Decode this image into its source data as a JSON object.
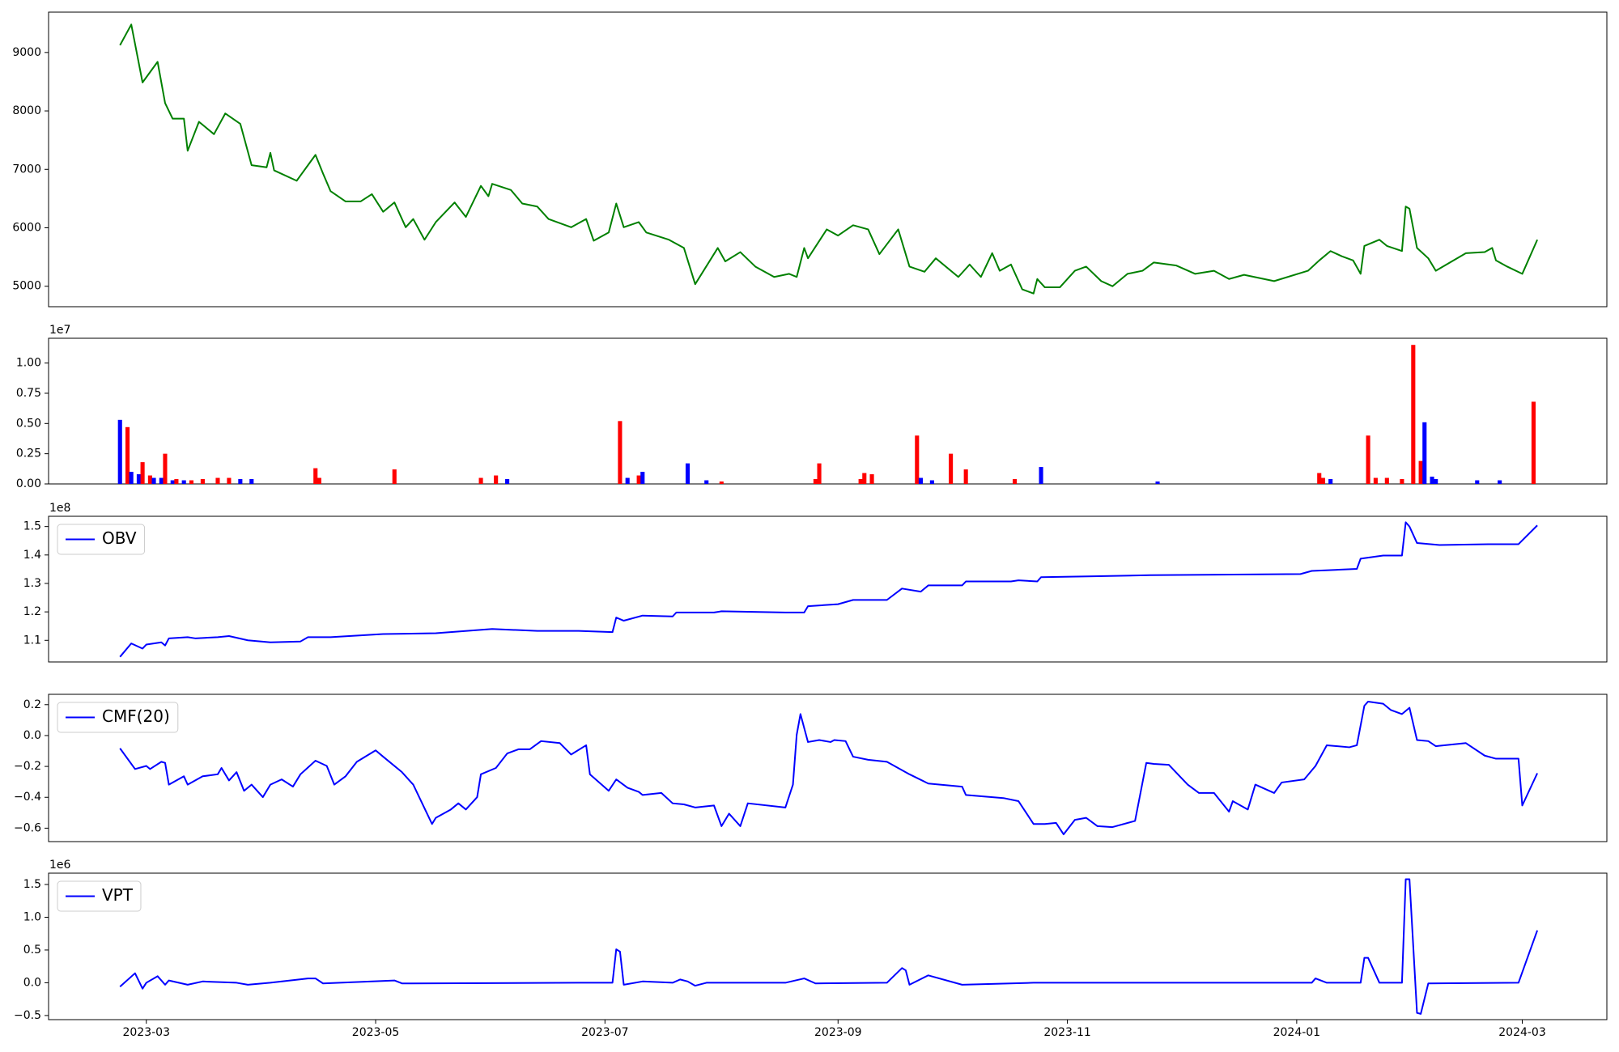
{
  "chart_data": [
    {
      "type": "line",
      "color": "#008000",
      "x": [
        52,
        55,
        58,
        62,
        64,
        66,
        69,
        70,
        73,
        77,
        80,
        84,
        87,
        91,
        92,
        93,
        99,
        100,
        104,
        106,
        108,
        112,
        116,
        119,
        122,
        125,
        128,
        130,
        133,
        136,
        141,
        144,
        148,
        150,
        151,
        156,
        159,
        163,
        166,
        172,
        176,
        178,
        182,
        184,
        186,
        190,
        192,
        198,
        202,
        205,
        211,
        213,
        217,
        221,
        226,
        230,
        232,
        234,
        235,
        240,
        243,
        247,
        251,
        254,
        259,
        262,
        266,
        269,
        275,
        278,
        281,
        284,
        286,
        289,
        292,
        295,
        296,
        298,
        302,
        306,
        309,
        313,
        316,
        320,
        324,
        327,
        333,
        338,
        343,
        347,
        351,
        359,
        368,
        371,
        374,
        377,
        380,
        382,
        383,
        387,
        389,
        393,
        394,
        395,
        397,
        400,
        402,
        410,
        415,
        417,
        418,
        421,
        425,
        429
      ],
      "values": [
        9124,
        9478,
        8487,
        8840,
        8133,
        7867,
        7867,
        7318,
        7814,
        7602,
        7956,
        7779,
        7071,
        7035,
        7283,
        6982,
        6805,
        6894,
        7248,
        6929,
        6628,
        6451,
        6451,
        6575,
        6274,
        6434,
        6009,
        6150,
        5796,
        6097,
        6434,
        6186,
        6717,
        6540,
        6752,
        6646,
        6416,
        6363,
        6150,
        6009,
        6150,
        5779,
        5920,
        6416,
        6009,
        6097,
        5920,
        5796,
        5655,
        5035,
        5655,
        5425,
        5584,
        5336,
        5159,
        5212,
        5159,
        5655,
        5478,
        5973,
        5867,
        6044,
        5973,
        5549,
        5973,
        5336,
        5248,
        5478,
        5159,
        5372,
        5159,
        5566,
        5265,
        5372,
        4947,
        4876,
        5124,
        4982,
        4982,
        5265,
        5336,
        5088,
        5000,
        5212,
        5265,
        5407,
        5354,
        5212,
        5265,
        5124,
        5195,
        5088,
        5265,
        5442,
        5602,
        5513,
        5442,
        5212,
        5690,
        5796,
        5690,
        5602,
        6363,
        6327,
        5655,
        5478,
        5265,
        5566,
        5584,
        5655,
        5442,
        5336,
        5212,
        5796
      ],
      "xlim": [
        33,
        447.5
      ],
      "ylim": [
        4650,
        9690
      ],
      "yticks": [
        5000,
        6000,
        7000,
        8000,
        9000
      ]
    },
    {
      "type": "bar",
      "offset_label": "1e7",
      "x": [
        52,
        54,
        55,
        57,
        58,
        60,
        61,
        63,
        64,
        66,
        67,
        69,
        71,
        74,
        78,
        81,
        84,
        87,
        104,
        105,
        125,
        148,
        152,
        155,
        185,
        187,
        190,
        191,
        203,
        208,
        212,
        237,
        238,
        249,
        250,
        252,
        264,
        265,
        268,
        273,
        277,
        290,
        297,
        328,
        371,
        372,
        374,
        384,
        386,
        389,
        393,
        396,
        398,
        399,
        401,
        402,
        413,
        419,
        428
      ],
      "values": [
        0.53,
        0.47,
        0.1,
        0.08,
        0.18,
        0.07,
        0.05,
        0.05,
        0.25,
        0.03,
        0.04,
        0.03,
        0.03,
        0.04,
        0.05,
        0.05,
        0.04,
        0.04,
        0.13,
        0.05,
        0.12,
        0.05,
        0.07,
        0.04,
        0.52,
        0.05,
        0.07,
        0.1,
        0.17,
        0.03,
        0.02,
        0.04,
        0.17,
        0.04,
        0.09,
        0.08,
        0.4,
        0.05,
        0.03,
        0.25,
        0.12,
        0.04,
        0.14,
        0.02,
        0.09,
        0.05,
        0.04,
        0.4,
        0.05,
        0.05,
        0.04,
        1.15,
        0.19,
        0.51,
        0.06,
        0.04,
        0.03,
        0.03,
        0.68
      ],
      "colors": [
        "#0000ff",
        "#ff0000",
        "#0000ff",
        "#0000ff",
        "#ff0000",
        "#ff0000",
        "#0000ff",
        "#0000ff",
        "#ff0000",
        "#0000ff",
        "#ff0000",
        "#0000ff",
        "#ff0000",
        "#ff0000",
        "#ff0000",
        "#ff0000",
        "#0000ff",
        "#0000ff",
        "#ff0000",
        "#ff0000",
        "#ff0000",
        "#ff0000",
        "#ff0000",
        "#0000ff",
        "#ff0000",
        "#0000ff",
        "#ff0000",
        "#0000ff",
        "#0000ff",
        "#0000ff",
        "#ff0000",
        "#ff0000",
        "#ff0000",
        "#ff0000",
        "#ff0000",
        "#ff0000",
        "#ff0000",
        "#0000ff",
        "#0000ff",
        "#ff0000",
        "#ff0000",
        "#ff0000",
        "#0000ff",
        "#0000ff",
        "#ff0000",
        "#ff0000",
        "#0000ff",
        "#ff0000",
        "#ff0000",
        "#ff0000",
        "#ff0000",
        "#ff0000",
        "#ff0000",
        "#0000ff",
        "#0000ff",
        "#0000ff",
        "#0000ff",
        "#0000ff",
        "#ff0000"
      ],
      "xlim": [
        33,
        447.5
      ],
      "ylim": [
        0,
        1.205
      ],
      "yticks": [
        {
          "value": 0,
          "label": "0.00"
        },
        0.25,
        {
          "value": 0.5,
          "label": "0.50"
        },
        0.75,
        {
          "value": 1,
          "label": "1.00"
        }
      ]
    },
    {
      "type": "line",
      "offset_label": "1e8",
      "legend": "upper left",
      "x": [
        52,
        55,
        58,
        59,
        63,
        64,
        65,
        70,
        72,
        78,
        81,
        86,
        92,
        100,
        102,
        108,
        122,
        136,
        151,
        163,
        174,
        183,
        184,
        186,
        191,
        199,
        200,
        210,
        212,
        229,
        234,
        235,
        243,
        247,
        256,
        260,
        265,
        267,
        276,
        277,
        289,
        291,
        296,
        297,
        311,
        326,
        366,
        369,
        381,
        382,
        388,
        393,
        394,
        395,
        397,
        403,
        416,
        424,
        429
      ],
      "series": [
        {
          "name": "OBV",
          "color": "#0000ff",
          "values": [
            1.042,
            1.089,
            1.071,
            1.085,
            1.093,
            1.082,
            1.107,
            1.111,
            1.107,
            1.111,
            1.115,
            1.1,
            1.093,
            1.096,
            1.111,
            1.111,
            1.122,
            1.125,
            1.14,
            1.133,
            1.133,
            1.129,
            1.18,
            1.169,
            1.187,
            1.184,
            1.198,
            1.198,
            1.202,
            1.198,
            1.198,
            1.22,
            1.227,
            1.242,
            1.242,
            1.282,
            1.271,
            1.293,
            1.293,
            1.307,
            1.307,
            1.311,
            1.307,
            1.322,
            1.325,
            1.329,
            1.333,
            1.344,
            1.351,
            1.387,
            1.398,
            1.398,
            1.515,
            1.5,
            1.442,
            1.435,
            1.438,
            1.438,
            1.504
          ]
        }
      ],
      "xlim": [
        33,
        447.5
      ],
      "ylim": [
        1.024,
        1.536
      ],
      "yticks": [
        1.1,
        1.2,
        1.3,
        1.4,
        1.5
      ]
    },
    {
      "type": "line",
      "legend": "upper left",
      "x": [
        52,
        56,
        59,
        60,
        63,
        64,
        65,
        69,
        70,
        74,
        78,
        79,
        81,
        83,
        85,
        87,
        90,
        92,
        95,
        98,
        100,
        104,
        107,
        109,
        112,
        115,
        120,
        122,
        127,
        130,
        135,
        136,
        140,
        142,
        144,
        147,
        148,
        152,
        155,
        158,
        161,
        164,
        169,
        172,
        176,
        177,
        182,
        184,
        187,
        190,
        191,
        196,
        199,
        202,
        205,
        210,
        212,
        214,
        217,
        219,
        229,
        231,
        232,
        233,
        235,
        238,
        241,
        242,
        245,
        247,
        251,
        256,
        262,
        267,
        276,
        277,
        287,
        291,
        295,
        298,
        301,
        303,
        306,
        309,
        312,
        316,
        322,
        325,
        327,
        331,
        336,
        339,
        343,
        347,
        348,
        352,
        354,
        359,
        361,
        367,
        370,
        373,
        379,
        381,
        383,
        384,
        388,
        390,
        393,
        395,
        397,
        400,
        402,
        410,
        415,
        418,
        424,
        425,
        429
      ],
      "series": [
        {
          "name": "CMF(20)",
          "color": "#0000ff",
          "values": [
            -0.083,
            -0.217,
            -0.197,
            -0.217,
            -0.17,
            -0.177,
            -0.318,
            -0.264,
            -0.318,
            -0.264,
            -0.251,
            -0.21,
            -0.291,
            -0.237,
            -0.358,
            -0.318,
            -0.399,
            -0.318,
            -0.284,
            -0.331,
            -0.251,
            -0.163,
            -0.197,
            -0.318,
            -0.264,
            -0.17,
            -0.096,
            -0.137,
            -0.237,
            -0.318,
            -0.573,
            -0.533,
            -0.479,
            -0.439,
            -0.479,
            -0.399,
            -0.251,
            -0.21,
            -0.116,
            -0.089,
            -0.089,
            -0.036,
            -0.049,
            -0.123,
            -0.063,
            -0.251,
            -0.358,
            -0.284,
            -0.338,
            -0.365,
            -0.385,
            -0.372,
            -0.439,
            -0.446,
            -0.466,
            -0.453,
            -0.587,
            -0.506,
            -0.587,
            -0.439,
            -0.466,
            -0.318,
            0.005,
            0.139,
            -0.042,
            -0.029,
            -0.042,
            -0.029,
            -0.036,
            -0.137,
            -0.157,
            -0.17,
            -0.251,
            -0.311,
            -0.331,
            -0.385,
            -0.405,
            -0.425,
            -0.573,
            -0.573,
            -0.566,
            -0.64,
            -0.546,
            -0.533,
            -0.587,
            -0.593,
            -0.553,
            -0.177,
            -0.184,
            -0.19,
            -0.318,
            -0.372,
            -0.372,
            -0.493,
            -0.425,
            -0.479,
            -0.318,
            -0.372,
            -0.304,
            -0.284,
            -0.197,
            -0.063,
            -0.076,
            -0.063,
            0.193,
            0.22,
            0.206,
            0.166,
            0.139,
            0.18,
            -0.029,
            -0.036,
            -0.069,
            -0.049,
            -0.13,
            -0.15,
            -0.15,
            -0.453,
            -0.244
          ]
        }
      ],
      "xlim": [
        33,
        447.5
      ],
      "ylim": [
        -0.687,
        0.267
      ],
      "yticks": [
        {
          "value": -0.6,
          "label": "−0.6"
        },
        {
          "value": -0.4,
          "label": "−0.4"
        },
        {
          "value": -0.2,
          "label": "−0.2"
        },
        {
          "value": 0,
          "label": "0.0"
        },
        0.2
      ]
    },
    {
      "type": "line",
      "offset_label": "1e6",
      "legend": "upper left",
      "x": [
        52,
        56,
        58,
        59,
        62,
        64,
        65,
        70,
        74,
        83,
        86,
        92,
        102,
        104,
        106,
        125,
        127,
        174,
        183,
        184,
        185,
        186,
        191,
        199,
        201,
        203,
        205,
        208,
        229,
        234,
        237,
        256,
        260,
        261,
        262,
        267,
        276,
        295,
        369,
        370,
        373,
        382,
        383,
        384,
        387,
        393,
        394,
        395,
        397,
        398,
        400,
        424,
        429
      ],
      "series": [
        {
          "name": "VPT",
          "color": "#0000ff",
          "values": [
            -0.06,
            0.145,
            -0.09,
            0.0,
            0.1,
            -0.03,
            0.035,
            -0.03,
            0.02,
            0.0,
            -0.03,
            0.0,
            0.066,
            0.066,
            -0.01,
            0.035,
            -0.01,
            0.0,
            0.0,
            0.51,
            0.475,
            -0.03,
            0.02,
            0.0,
            0.05,
            0.02,
            -0.045,
            0.0,
            0.0,
            0.066,
            -0.01,
            0.0,
            0.224,
            0.19,
            -0.03,
            0.113,
            -0.03,
            0.0,
            0.0,
            0.066,
            0.0,
            0.0,
            0.38,
            0.38,
            0.0,
            0.0,
            1.58,
            1.58,
            -0.46,
            -0.475,
            -0.01,
            0.0,
            0.8
          ]
        }
      ],
      "xlim": [
        33,
        447.5
      ],
      "ylim": [
        -0.563,
        1.673
      ],
      "yticks": [
        {
          "value": -0.5,
          "label": "−0.5"
        },
        {
          "value": 0,
          "label": "0.0"
        },
        0.5,
        {
          "value": 1,
          "label": "1.0"
        },
        1.5
      ],
      "xticks": [
        {
          "value": 59,
          "label": "2023-03"
        },
        {
          "value": 120,
          "label": "2023-05"
        },
        {
          "value": 181,
          "label": "2023-07"
        },
        {
          "value": 243,
          "label": "2023-09"
        },
        {
          "value": 304,
          "label": "2023-11"
        },
        {
          "value": 365,
          "label": "2024-01"
        },
        {
          "value": 425,
          "label": "2024-03"
        }
      ]
    }
  ]
}
